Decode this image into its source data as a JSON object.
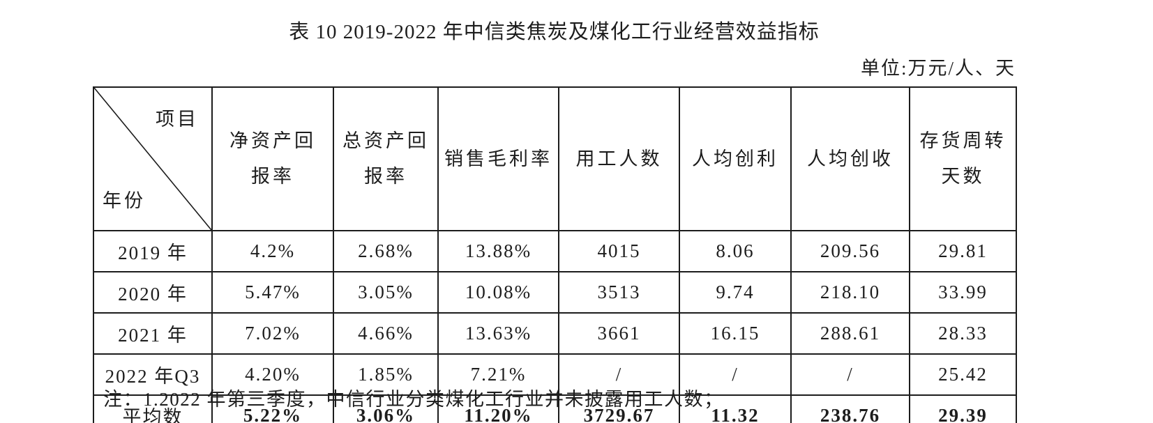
{
  "page": {
    "title": "表 10 2019-2022 年中信类焦炭及煤化工行业经营效益指标",
    "unit_label": "单位:万元/人、天",
    "note": "注：1.2022 年第三季度，中信行业分类煤化工行业并未披露用工人数；"
  },
  "table": {
    "corner": {
      "top_right": "项目",
      "bottom_left": "年份"
    },
    "columns": [
      "净资产回\n报率",
      "总资产回\n报率",
      "销售毛利率",
      "用工人数",
      "人均创利",
      "人均创收",
      "存货周转\n天数"
    ],
    "rows": [
      {
        "bold": false,
        "cells": [
          "2019 年",
          "4.2%",
          "2.68%",
          "13.88%",
          "4015",
          "8.06",
          "209.56",
          "29.81"
        ]
      },
      {
        "bold": false,
        "cells": [
          "2020 年",
          "5.47%",
          "3.05%",
          "10.08%",
          "3513",
          "9.74",
          "218.10",
          "33.99"
        ]
      },
      {
        "bold": false,
        "cells": [
          "2021 年",
          "7.02%",
          "4.66%",
          "13.63%",
          "3661",
          "16.15",
          "288.61",
          "28.33"
        ]
      },
      {
        "bold": false,
        "cells": [
          "2022 年Q3",
          "4.20%",
          "1.85%",
          "7.21%",
          "/",
          "/",
          "/",
          "25.42"
        ]
      },
      {
        "bold": true,
        "cells": [
          "平均数",
          "5.22%",
          "3.06%",
          "11.20%",
          "3729.67",
          "11.32",
          "238.76",
          "29.39"
        ]
      }
    ]
  }
}
